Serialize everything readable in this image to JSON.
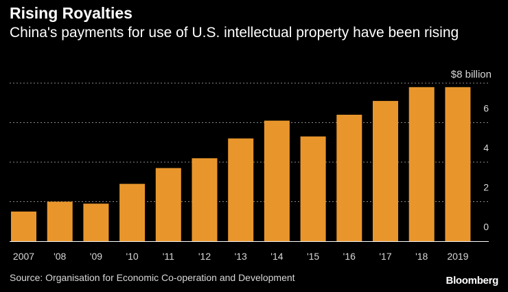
{
  "header": {
    "title": "Rising Royalties",
    "subtitle": "China's payments for use of U.S. intellectual property have been rising"
  },
  "footer": {
    "source": "Source: Organisation for Economic Co-operation and Development",
    "brand": "Bloomberg"
  },
  "colors": {
    "bar": "#e8962c",
    "grid": "#8c8c8c",
    "axis": "#ffffff"
  },
  "chart_data": {
    "type": "bar",
    "categories": [
      "2007",
      "'08",
      "'09",
      "'10",
      "'11",
      "'12",
      "'13",
      "'14",
      "'15",
      "'16",
      "'17",
      "'18",
      "2019"
    ],
    "values": [
      1.5,
      2.0,
      1.9,
      2.9,
      3.7,
      4.2,
      5.2,
      6.1,
      5.3,
      6.4,
      7.1,
      7.8,
      7.8
    ],
    "ylim": [
      0,
      8
    ],
    "yticks": [
      {
        "value": 0,
        "label": "0"
      },
      {
        "value": 2,
        "label": "2"
      },
      {
        "value": 4,
        "label": "4"
      },
      {
        "value": 6,
        "label": "6"
      },
      {
        "value": 8,
        "label": "$8 billion"
      }
    ],
    "title": "Rising Royalties",
    "xlabel": "",
    "ylabel": "$ billion",
    "grid": true
  }
}
